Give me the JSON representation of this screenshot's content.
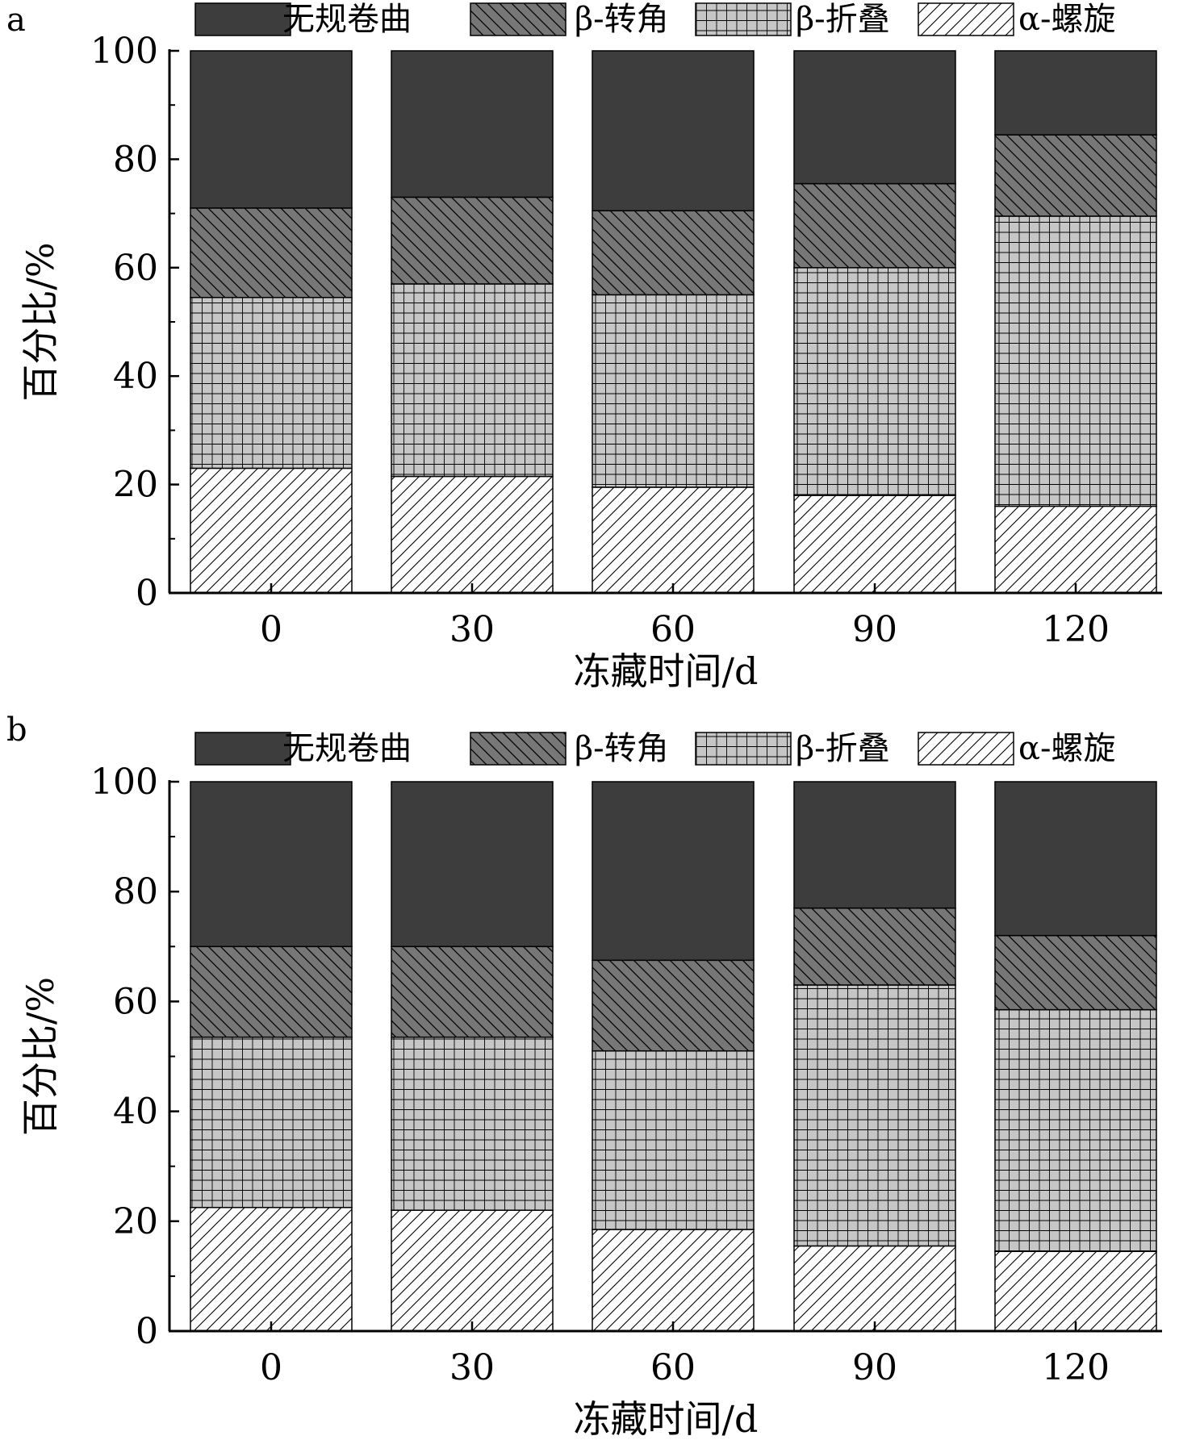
{
  "colors": {
    "random_coil": "#3d3d3d",
    "beta_turn": "#777777",
    "beta_sheet": "#c6c6c6",
    "alpha_helix": "#ffffff",
    "outline": "#000000"
  },
  "chart_data": [
    {
      "panel_label": "a",
      "type": "bar",
      "stacked": true,
      "categories": [
        "0",
        "30",
        "60",
        "90",
        "120"
      ],
      "series": [
        {
          "name": "α-螺旋",
          "key": "alpha_helix",
          "pattern": "diagonal-forward",
          "values": [
            23,
            21.5,
            19.5,
            18,
            16
          ]
        },
        {
          "name": "β-折叠",
          "key": "beta_sheet",
          "pattern": "grid",
          "values": [
            31.5,
            35.5,
            35.5,
            42,
            53.5
          ]
        },
        {
          "name": "β-转角",
          "key": "beta_turn",
          "pattern": "diagonal-backward",
          "values": [
            16.5,
            16,
            15.5,
            15.5,
            15
          ]
        },
        {
          "name": "无规卷曲",
          "key": "random_coil",
          "pattern": "solid",
          "values": [
            29,
            27,
            29.5,
            24.5,
            15.5
          ]
        }
      ],
      "legend_order": [
        "无规卷曲",
        "β-转角",
        "β-折叠",
        "α-螺旋"
      ],
      "legend_position": "top",
      "xlabel": "冻藏时间/d",
      "ylabel": "百分比/%",
      "ylim": [
        0,
        100
      ],
      "yticks": [
        0,
        20,
        40,
        60,
        80,
        100
      ],
      "grid": false
    },
    {
      "panel_label": "b",
      "type": "bar",
      "stacked": true,
      "categories": [
        "0",
        "30",
        "60",
        "90",
        "120"
      ],
      "series": [
        {
          "name": "α-螺旋",
          "key": "alpha_helix",
          "pattern": "diagonal-forward",
          "values": [
            22.5,
            22,
            18.5,
            15.5,
            14.5
          ]
        },
        {
          "name": "β-折叠",
          "key": "beta_sheet",
          "pattern": "grid",
          "values": [
            31,
            31.5,
            32.5,
            47.5,
            44
          ]
        },
        {
          "name": "β-转角",
          "key": "beta_turn",
          "pattern": "diagonal-backward",
          "values": [
            16.5,
            16.5,
            16.5,
            14,
            13.5
          ]
        },
        {
          "name": "无规卷曲",
          "key": "random_coil",
          "pattern": "solid",
          "values": [
            30,
            30,
            32.5,
            23,
            28
          ]
        }
      ],
      "legend_order": [
        "无规卷曲",
        "β-转角",
        "β-折叠",
        "α-螺旋"
      ],
      "legend_position": "top",
      "xlabel": "冻藏时间/d",
      "ylabel": "百分比/%",
      "ylim": [
        0,
        100
      ],
      "yticks": [
        0,
        20,
        40,
        60,
        80,
        100
      ],
      "grid": false
    }
  ]
}
